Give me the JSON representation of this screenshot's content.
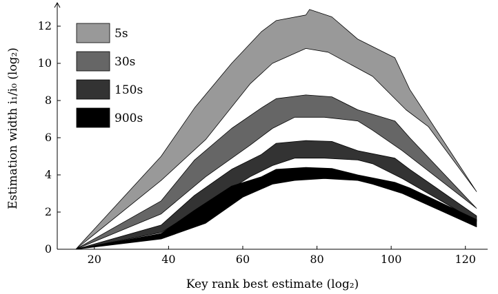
{
  "chart_data": {
    "type": "area",
    "title": "",
    "xlabel": "Key rank best estimate (log₂)",
    "ylabel": "Estimation width i₁/i₀ (log₂)",
    "xlim": [
      10,
      126
    ],
    "ylim": [
      0,
      13
    ],
    "xticks": [
      20,
      40,
      60,
      80,
      100,
      120
    ],
    "yticks": [
      0,
      2,
      4,
      6,
      8,
      10,
      12
    ],
    "grid": false,
    "legend_position": "top-left",
    "series": [
      {
        "name": "5s",
        "color": "#999999",
        "upper": [
          [
            15,
            0
          ],
          [
            38,
            5.0
          ],
          [
            47,
            7.6
          ],
          [
            57,
            10.0
          ],
          [
            65,
            11.7
          ],
          [
            69,
            12.3
          ],
          [
            77,
            12.6
          ],
          [
            78,
            12.9
          ],
          [
            84,
            12.5
          ],
          [
            91,
            11.3
          ],
          [
            101,
            10.3
          ],
          [
            105,
            8.6
          ],
          [
            123,
            3.1
          ]
        ],
        "lower": [
          [
            15,
            0
          ],
          [
            38,
            3.7
          ],
          [
            50,
            5.9
          ],
          [
            62,
            8.9
          ],
          [
            68,
            10.0
          ],
          [
            77,
            10.8
          ],
          [
            83,
            10.6
          ],
          [
            95,
            9.3
          ],
          [
            104,
            7.5
          ],
          [
            110,
            6.6
          ],
          [
            123,
            3.1
          ]
        ]
      },
      {
        "name": "30s",
        "color": "#666666",
        "upper": [
          [
            15,
            0
          ],
          [
            38,
            2.6
          ],
          [
            47,
            4.8
          ],
          [
            57,
            6.5
          ],
          [
            65,
            7.6
          ],
          [
            69,
            8.1
          ],
          [
            77,
            8.3
          ],
          [
            84,
            8.2
          ],
          [
            91,
            7.5
          ],
          [
            101,
            6.9
          ],
          [
            105,
            6.0
          ],
          [
            123,
            2.2
          ]
        ],
        "lower": [
          [
            15,
            0
          ],
          [
            38,
            1.9
          ],
          [
            50,
            3.9
          ],
          [
            62,
            5.6
          ],
          [
            68,
            6.5
          ],
          [
            74,
            7.1
          ],
          [
            82,
            7.1
          ],
          [
            91,
            6.9
          ],
          [
            95,
            6.4
          ],
          [
            103,
            5.3
          ],
          [
            123,
            2.2
          ]
        ]
      },
      {
        "name": "150s",
        "color": "#333333",
        "upper": [
          [
            15,
            0
          ],
          [
            38,
            1.3
          ],
          [
            47,
            2.9
          ],
          [
            57,
            4.3
          ],
          [
            65,
            5.1
          ],
          [
            69,
            5.7
          ],
          [
            77,
            5.85
          ],
          [
            84,
            5.8
          ],
          [
            91,
            5.3
          ],
          [
            101,
            4.9
          ],
          [
            105,
            4.3
          ],
          [
            123,
            1.8
          ]
        ],
        "lower": [
          [
            15,
            0
          ],
          [
            38,
            0.9
          ],
          [
            50,
            2.4
          ],
          [
            62,
            3.9
          ],
          [
            68,
            4.5
          ],
          [
            74,
            4.9
          ],
          [
            82,
            4.9
          ],
          [
            91,
            4.8
          ],
          [
            95,
            4.6
          ],
          [
            103,
            3.8
          ],
          [
            123,
            1.5
          ]
        ]
      },
      {
        "name": "900s",
        "color": "#000000",
        "upper": [
          [
            15,
            0
          ],
          [
            38,
            0.85
          ],
          [
            47,
            2.1
          ],
          [
            57,
            3.4
          ],
          [
            65,
            3.9
          ],
          [
            69,
            4.3
          ],
          [
            77,
            4.4
          ],
          [
            84,
            4.35
          ],
          [
            91,
            4.0
          ],
          [
            101,
            3.6
          ],
          [
            105,
            3.3
          ],
          [
            123,
            1.6
          ]
        ],
        "lower": [
          [
            15,
            0
          ],
          [
            38,
            0.55
          ],
          [
            50,
            1.4
          ],
          [
            60,
            2.8
          ],
          [
            68,
            3.5
          ],
          [
            74,
            3.7
          ],
          [
            82,
            3.8
          ],
          [
            91,
            3.7
          ],
          [
            95,
            3.5
          ],
          [
            103,
            3.0
          ],
          [
            123,
            1.2
          ]
        ]
      }
    ]
  }
}
